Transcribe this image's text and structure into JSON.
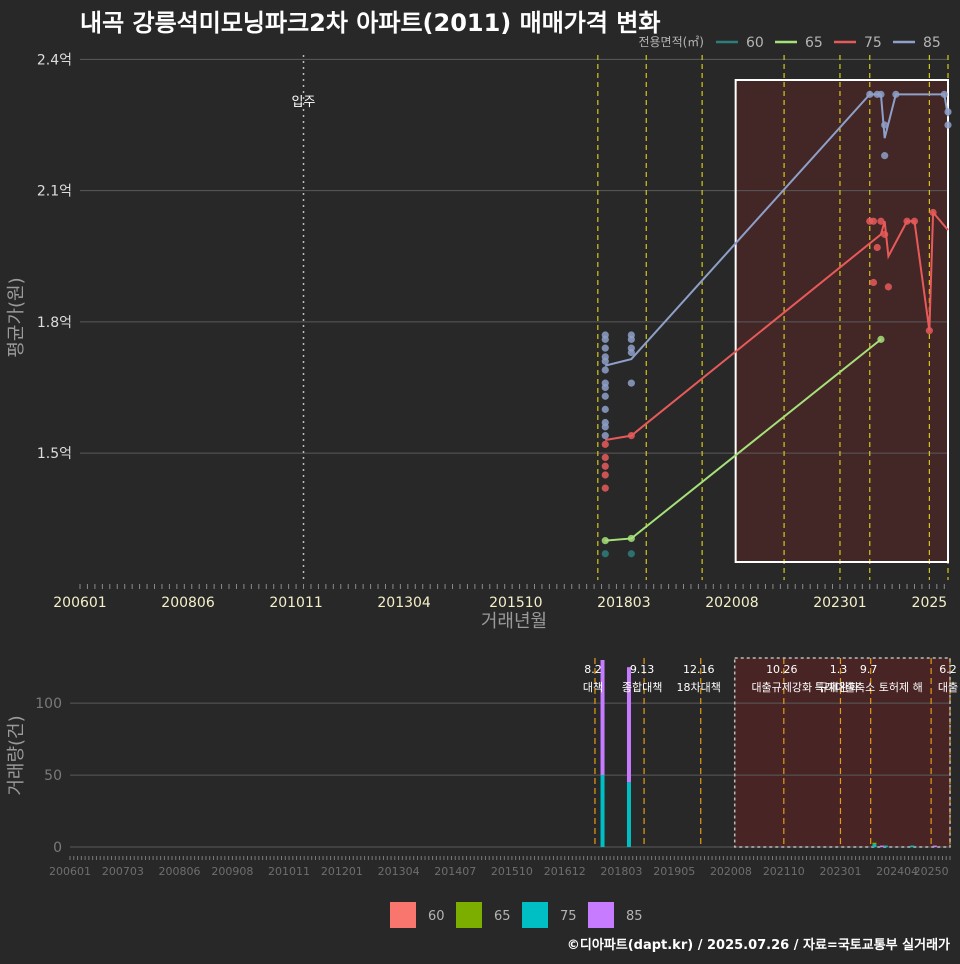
{
  "title": "내곡 강릉석미모닝파크2차 아파트(2011) 매매가격 변화",
  "credit": "©디아파트(dapt.kr) / 2025.07.26 / 자료=국토교통부 실거래가",
  "colors": {
    "background": "#282828",
    "grid": "#5a5a5a",
    "policy_line": "#d4c81c",
    "policy_line_bottom": "#e59a1a",
    "entry_line": "#bbbbbb",
    "highlight_fill": "#4a2626",
    "highlight_border": "#ffffff"
  },
  "chart_data": [
    {
      "type": "line",
      "name": "price",
      "title": "내곡 강릉석미모닝파크2차 아파트(2011) 매매가격 변화",
      "xlabel": "거래년월",
      "ylabel": "평균가(원)",
      "x_tick_labels": [
        "200601",
        "200806",
        "201011",
        "201304",
        "201510",
        "201803",
        "202008",
        "202301",
        "2025"
      ],
      "y_ticks": [
        {
          "value": 1.5,
          "label": "1.5억"
        },
        {
          "value": 1.8,
          "label": "1.8억"
        },
        {
          "value": 2.1,
          "label": "2.1억"
        },
        {
          "value": 2.4,
          "label": "2.4억"
        }
      ],
      "y_unit": "억원",
      "ylim": [
        1.21,
        2.41
      ],
      "xlim": [
        "2006-01",
        "2025-06"
      ],
      "legend": {
        "title": "전용면적(㎡)",
        "position": "top-right",
        "entries": [
          {
            "label": "60",
            "color": "#2e7d7d"
          },
          {
            "label": "65",
            "color": "#a6e07a"
          },
          {
            "label": "75",
            "color": "#e85a5a"
          },
          {
            "label": "85",
            "color": "#8ea0c8"
          }
        ]
      },
      "entry_annotation": {
        "label": "입주",
        "x": "2011-01"
      },
      "policy_lines_x": [
        "2017-08",
        "2018-09",
        "2019-12",
        "2021-10",
        "2023-01",
        "2023-09",
        "2025-01",
        "2025-06"
      ],
      "highlight_range_x": [
        "2020-09",
        "2025-06"
      ],
      "series": [
        {
          "name": "60",
          "color": "#2e7d7d",
          "line": [],
          "points": [
            {
              "x": "2017-10",
              "y": 1.27
            },
            {
              "x": "2018-05",
              "y": 1.27
            }
          ]
        },
        {
          "name": "65",
          "color": "#a6e07a",
          "line": [
            {
              "x": "2017-10",
              "y": 1.3
            },
            {
              "x": "2018-05",
              "y": 1.305
            },
            {
              "x": "2023-12",
              "y": 1.76
            }
          ],
          "points": [
            {
              "x": "2017-10",
              "y": 1.3
            },
            {
              "x": "2018-05",
              "y": 1.305
            },
            {
              "x": "2023-12",
              "y": 1.76
            }
          ]
        },
        {
          "name": "75",
          "color": "#e85a5a",
          "line": [
            {
              "x": "2017-10",
              "y": 1.53
            },
            {
              "x": "2018-05",
              "y": 1.54
            },
            {
              "x": "2023-12",
              "y": 2.0
            },
            {
              "x": "2024-01",
              "y": 2.03
            },
            {
              "x": "2024-02",
              "y": 1.95
            },
            {
              "x": "2024-07",
              "y": 2.03
            },
            {
              "x": "2024-09",
              "y": 2.03
            },
            {
              "x": "2025-01",
              "y": 1.78
            },
            {
              "x": "2025-02",
              "y": 2.05
            },
            {
              "x": "2025-06",
              "y": 2.01
            }
          ],
          "points": [
            {
              "x": "2017-10",
              "y": 1.42
            },
            {
              "x": "2017-10",
              "y": 1.45
            },
            {
              "x": "2017-10",
              "y": 1.47
            },
            {
              "x": "2017-10",
              "y": 1.49
            },
            {
              "x": "2017-10",
              "y": 1.52
            },
            {
              "x": "2018-05",
              "y": 1.54
            },
            {
              "x": "2023-09",
              "y": 2.03
            },
            {
              "x": "2023-10",
              "y": 2.03
            },
            {
              "x": "2023-10",
              "y": 1.89
            },
            {
              "x": "2023-11",
              "y": 1.97
            },
            {
              "x": "2023-12",
              "y": 2.03
            },
            {
              "x": "2024-01",
              "y": 2.0
            },
            {
              "x": "2024-02",
              "y": 1.88
            },
            {
              "x": "2024-07",
              "y": 2.03
            },
            {
              "x": "2024-09",
              "y": 2.03
            },
            {
              "x": "2025-01",
              "y": 1.78
            },
            {
              "x": "2025-02",
              "y": 2.05
            }
          ]
        },
        {
          "name": "85",
          "color": "#8ea0c8",
          "line": [
            {
              "x": "2017-10",
              "y": 1.7
            },
            {
              "x": "2018-05",
              "y": 1.715
            },
            {
              "x": "2023-09",
              "y": 2.32
            },
            {
              "x": "2023-12",
              "y": 2.32
            },
            {
              "x": "2024-01",
              "y": 2.22
            },
            {
              "x": "2024-04",
              "y": 2.32
            },
            {
              "x": "2025-05",
              "y": 2.32
            },
            {
              "x": "2025-06",
              "y": 2.27
            }
          ],
          "points": [
            {
              "x": "2017-10",
              "y": 1.54
            },
            {
              "x": "2017-10",
              "y": 1.56
            },
            {
              "x": "2017-10",
              "y": 1.57
            },
            {
              "x": "2017-10",
              "y": 1.6
            },
            {
              "x": "2017-10",
              "y": 1.63
            },
            {
              "x": "2017-10",
              "y": 1.65
            },
            {
              "x": "2017-10",
              "y": 1.66
            },
            {
              "x": "2017-10",
              "y": 1.69
            },
            {
              "x": "2017-10",
              "y": 1.71
            },
            {
              "x": "2017-10",
              "y": 1.72
            },
            {
              "x": "2017-10",
              "y": 1.74
            },
            {
              "x": "2017-10",
              "y": 1.76
            },
            {
              "x": "2017-10",
              "y": 1.77
            },
            {
              "x": "2018-05",
              "y": 1.66
            },
            {
              "x": "2018-05",
              "y": 1.73
            },
            {
              "x": "2018-05",
              "y": 1.74
            },
            {
              "x": "2018-05",
              "y": 1.76
            },
            {
              "x": "2018-05",
              "y": 1.77
            },
            {
              "x": "2023-09",
              "y": 2.32
            },
            {
              "x": "2023-11",
              "y": 2.32
            },
            {
              "x": "2023-12",
              "y": 2.32
            },
            {
              "x": "2024-01",
              "y": 2.25
            },
            {
              "x": "2024-01",
              "y": 2.18
            },
            {
              "x": "2024-04",
              "y": 2.32
            },
            {
              "x": "2025-05",
              "y": 2.32
            },
            {
              "x": "2025-06",
              "y": 2.28
            },
            {
              "x": "2025-06",
              "y": 2.25
            }
          ]
        }
      ]
    },
    {
      "type": "bar",
      "name": "volume",
      "ylabel": "거래량(건)",
      "x_tick_labels": [
        "200601",
        "200703",
        "200806",
        "200908",
        "201011",
        "201201",
        "201304",
        "201407",
        "201510",
        "201612",
        "201803",
        "201905",
        "202008",
        "202110",
        "202301",
        "202404",
        "20250"
      ],
      "y_ticks": [
        0,
        50,
        100
      ],
      "ylim": [
        0,
        130
      ],
      "xlim": [
        "2006-01",
        "2025-06"
      ],
      "legend": {
        "position": "bottom",
        "entries": [
          {
            "label": "60",
            "color": "#f8766d"
          },
          {
            "label": "65",
            "color": "#7cae00"
          },
          {
            "label": "75",
            "color": "#00bfc4"
          },
          {
            "label": "85",
            "color": "#c77cff"
          }
        ]
      },
      "policy_lines_x": [
        "2017-08",
        "2018-09",
        "2019-12",
        "2021-10",
        "2023-01",
        "2023-09",
        "2025-01",
        "2025-06"
      ],
      "highlight_range_x": [
        "2020-09",
        "2025-06"
      ],
      "annotations": [
        {
          "date": "8.2",
          "label": "대책",
          "x": "2017-08"
        },
        {
          "date": "9.13",
          "label": "종합대책",
          "x": "2018-09"
        },
        {
          "date": "12.16",
          "label": "18차대책",
          "x": "2019-12"
        },
        {
          "date": "10.26",
          "label": "대출규제강화",
          "x": "2021-10"
        },
        {
          "date": "1.3",
          "label": "규제완화",
          "x": "2023-01"
        },
        {
          "date": "9.7",
          "label": "특례대출축소 토허제 해",
          "x": "2023-09"
        },
        {
          "date": "6.2",
          "label": "대출",
          "x": "2025-06"
        }
      ],
      "bars": [
        {
          "x": "2017-10",
          "stack": [
            {
              "area": "75",
              "value": 50
            },
            {
              "area": "85",
              "value": 80
            }
          ]
        },
        {
          "x": "2018-05",
          "stack": [
            {
              "area": "75",
              "value": 45
            },
            {
              "area": "85",
              "value": 80
            }
          ]
        },
        {
          "x": "2023-10",
          "stack": [
            {
              "area": "75",
              "value": 2
            },
            {
              "area": "65",
              "value": 1
            }
          ]
        },
        {
          "x": "2023-12",
          "stack": [
            {
              "area": "85",
              "value": 1
            }
          ]
        },
        {
          "x": "2024-01",
          "stack": [
            {
              "area": "75",
              "value": 1
            }
          ]
        },
        {
          "x": "2024-08",
          "stack": [
            {
              "area": "75",
              "value": 1
            }
          ]
        },
        {
          "x": "2025-02",
          "stack": [
            {
              "area": "85",
              "value": 1
            }
          ]
        }
      ]
    }
  ]
}
